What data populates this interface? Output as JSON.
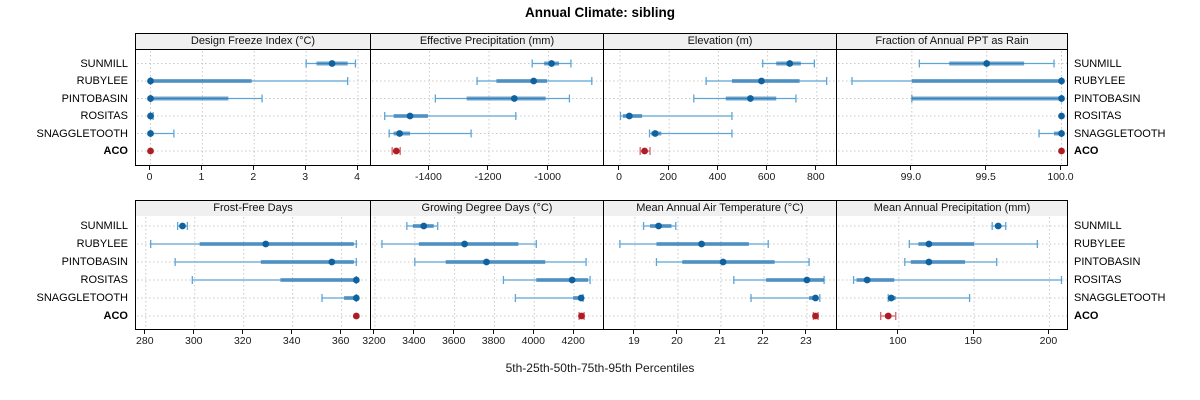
{
  "title": "Annual Climate: sibling",
  "xlabel": "5th-25th-50th-75th-95th Percentiles",
  "rows": [
    "SUNMILL",
    "RUBYLEE",
    "PINTOBASIN",
    "ROSITAS",
    "SNAGGLETOOTH",
    "ACO"
  ],
  "highlight_row": "ACO",
  "colors": {
    "blue_point": "#10629f",
    "blue_line": "#5ea5d7",
    "blue_band": "#1d6fae",
    "red_point": "#ae1c24",
    "red_line": "#d4666b",
    "red_band": "#b42c33",
    "strip_bg": "#f0f0f0",
    "grid": "#c9c9c9",
    "border": "#000000"
  },
  "chart_data": {
    "type": "percentile-dotplot",
    "layout": "2x4 lattice, shared site rows, per-panel x axes",
    "percentiles": [
      5,
      25,
      50,
      75,
      95
    ],
    "panels": [
      {
        "title": "Design Freeze Index (°C)",
        "xlim": [
          -0.28,
          4.25
        ],
        "tick_values": [
          0,
          1,
          2,
          3,
          4
        ],
        "tick_labels": [
          "0",
          "1",
          "2",
          "3",
          "4"
        ],
        "series": [
          [
            3.0,
            3.2,
            3.5,
            3.8,
            3.95
          ],
          [
            0,
            0,
            0,
            1.95,
            3.8
          ],
          [
            0,
            0,
            0,
            1.5,
            2.15
          ],
          [
            0,
            0,
            0,
            0,
            0.05
          ],
          [
            0,
            0,
            0,
            0.05,
            0.45
          ],
          [
            0,
            0,
            0,
            0,
            0
          ]
        ]
      },
      {
        "title": "Effective Precipitation (mm)",
        "xlim": [
          -1596,
          -814
        ],
        "tick_values": [
          -1400,
          -1200,
          -1000
        ],
        "tick_labels": [
          "-1400",
          "-1200",
          "-1000"
        ],
        "series": [
          [
            -1055,
            -1015,
            -990,
            -965,
            -925
          ],
          [
            -1240,
            -1175,
            -1050,
            -1005,
            -855
          ],
          [
            -1380,
            -1275,
            -1115,
            -1010,
            -930
          ],
          [
            -1550,
            -1520,
            -1465,
            -1405,
            -1110
          ],
          [
            -1535,
            -1520,
            -1500,
            -1465,
            -1260
          ],
          [
            -1525,
            -1516,
            -1511,
            -1506,
            -1498
          ]
        ]
      },
      {
        "title": "Elevation (m)",
        "xlim": [
          -65,
          882
        ],
        "tick_values": [
          0,
          200,
          400,
          600,
          800
        ],
        "tick_labels": [
          "0",
          "200",
          "400",
          "600",
          "800"
        ],
        "series": [
          [
            580,
            635,
            690,
            735,
            790
          ],
          [
            350,
            455,
            575,
            730,
            840
          ],
          [
            300,
            430,
            530,
            635,
            715
          ],
          [
            2,
            12,
            38,
            90,
            455
          ],
          [
            120,
            127,
            143,
            168,
            455
          ],
          [
            82,
            92,
            100,
            110,
            122
          ]
        ]
      },
      {
        "title": "Fraction of Annual PPT as Rain",
        "xlim": [
          98.5,
          100.05
        ],
        "tick_values": [
          99.0,
          99.5,
          100.0
        ],
        "tick_labels": [
          "99.0",
          "99.5",
          "100.0"
        ],
        "series": [
          [
            99.05,
            99.25,
            99.5,
            99.75,
            99.95
          ],
          [
            98.6,
            99.0,
            100.0,
            100.0,
            100.0
          ],
          [
            99.0,
            99.0,
            100.0,
            100.0,
            100.0
          ],
          [
            100.0,
            100.0,
            100.0,
            100.0,
            100.0
          ],
          [
            99.85,
            99.95,
            100.0,
            100.0,
            100.0
          ],
          [
            100.0,
            100.0,
            100.0,
            100.0,
            100.0
          ]
        ]
      },
      {
        "title": "Frost-Free Days",
        "xlim": [
          276,
          372
        ],
        "tick_values": [
          280,
          300,
          320,
          340,
          360
        ],
        "tick_labels": [
          "280",
          "300",
          "320",
          "340",
          "360"
        ],
        "series": [
          [
            293,
            294,
            295,
            296,
            297
          ],
          [
            282,
            302,
            329,
            365,
            366
          ],
          [
            292,
            327,
            356,
            365,
            366
          ],
          [
            299,
            335,
            366,
            366,
            366
          ],
          [
            352,
            361,
            366,
            366,
            366
          ],
          [
            366,
            366,
            366,
            366,
            366
          ]
        ]
      },
      {
        "title": "Growing Degree Days (°C)",
        "xlim": [
          3180,
          4350
        ],
        "tick_values": [
          3200,
          3400,
          3600,
          3800,
          4000,
          4200
        ],
        "tick_labels": [
          "3200",
          "3400",
          "3600",
          "3800",
          "4000",
          "4200"
        ],
        "series": [
          [
            3360,
            3390,
            3445,
            3495,
            3515
          ],
          [
            3235,
            3420,
            3650,
            3920,
            4010
          ],
          [
            3400,
            3555,
            3760,
            4055,
            4260
          ],
          [
            3845,
            4010,
            4190,
            4270,
            4280
          ],
          [
            3905,
            4195,
            4235,
            4240,
            4245
          ],
          [
            4225,
            4232,
            4237,
            4242,
            4250
          ]
        ]
      },
      {
        "title": "Mean Annual Air Temperature (°C)",
        "xlim": [
          18.28,
          23.7
        ],
        "tick_values": [
          19,
          20,
          21,
          22,
          23
        ],
        "tick_labels": [
          "19",
          "20",
          "21",
          "22",
          "23"
        ],
        "series": [
          [
            19.2,
            19.35,
            19.55,
            19.85,
            19.95
          ],
          [
            18.65,
            19.5,
            20.55,
            21.65,
            22.1
          ],
          [
            19.5,
            20.1,
            21.05,
            22.25,
            23.05
          ],
          [
            21.3,
            22.05,
            23.0,
            23.4,
            23.4
          ],
          [
            21.7,
            23.05,
            23.2,
            23.25,
            23.3
          ],
          [
            23.15,
            23.18,
            23.2,
            23.23,
            23.26
          ]
        ]
      },
      {
        "title": "Mean Annual Precipitation (mm)",
        "xlim": [
          59,
          213
        ],
        "tick_values": [
          100,
          150,
          200
        ],
        "tick_labels": [
          "100",
          "150",
          "200"
        ],
        "series": [
          [
            162,
            164,
            166,
            168,
            171
          ],
          [
            107,
            113,
            120,
            150,
            192
          ],
          [
            104,
            108,
            120,
            144,
            165
          ],
          [
            70,
            72,
            79,
            97,
            208
          ],
          [
            93,
            94,
            95,
            98,
            147
          ],
          [
            88,
            91,
            93,
            95,
            98
          ]
        ]
      }
    ]
  }
}
